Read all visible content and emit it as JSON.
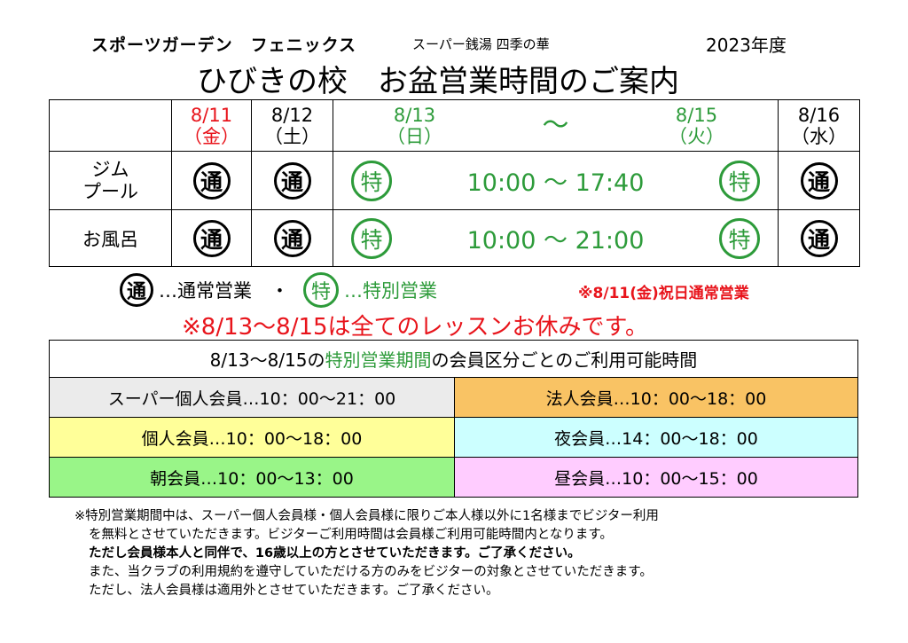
{
  "header": {
    "brand": "スポーツガーデン　フェニックス",
    "sub": "スーパー銭湯 四季の華",
    "year": "2023年度",
    "title": "ひびきの校　お盆営業時間のご案内"
  },
  "schedule": {
    "dates": [
      {
        "date": "8/11",
        "day": "（金）",
        "color": "#e8141b"
      },
      {
        "date": "8/12",
        "day": "（土）",
        "color": "#000000"
      },
      {
        "date": "8/13",
        "day": "（日）",
        "color": "#2d9b3a"
      },
      {
        "range": "～"
      },
      {
        "date": "8/15",
        "day": "（火）",
        "color": "#2d9b3a"
      },
      {
        "date": "8/16",
        "day": "（水）",
        "color": "#000000"
      }
    ],
    "rows": [
      {
        "label1": "ジム",
        "label2": "プール",
        "normal": "通",
        "special": "特",
        "time": "10:00 ～ 17:40"
      },
      {
        "label1": "お風呂",
        "normal": "通",
        "special": "特",
        "time": "10:00 ～ 21:00"
      }
    ]
  },
  "legend": {
    "normal_mark": "通",
    "normal_text": "…通常営業　・",
    "special_mark": "特",
    "special_text": "…特別営業",
    "holiday": "※8/11(金)祝日通常営業"
  },
  "lesson_notice": "※8/13～8/15は全てのレッスンお休みです。",
  "members": {
    "title_pre": "8/13～8/15の",
    "title_em": "特別営業期間",
    "title_post": "の会員区分ごとのご利用可能時間",
    "cells": [
      {
        "text": "スーパー個人会員…10：00～21：00",
        "color": "#ebebeb"
      },
      {
        "text": "法人会員…10：00～18：00",
        "color": "#f9c364"
      },
      {
        "text": "個人会員…10：00～18：00",
        "color": "#ffff99"
      },
      {
        "text": "夜会員…14：00～18：00",
        "color": "#ccffff"
      },
      {
        "text": "朝会員…10：00～13：00",
        "color": "#99f588"
      },
      {
        "text": "昼会員…10：00～15：00",
        "color": "#ffccff"
      }
    ]
  },
  "notes": [
    "※特別営業期間中は、スーパー個人会員様・個人会員様に限りご本人様以外に1名様までビジター利用",
    "を無料とさせていただきます。ビジターご利用時間は会員様ご利用可能時間内となります。",
    "ただし会員様本人と同伴で、16歳以上の方とさせていただきます。ご了承ください。",
    "また、当クラブの利用規約を遵守していただける方のみをビジターの対象とさせていただきます。",
    "ただし、法人会員様は適用外とさせていただきます。ご了承ください。"
  ]
}
